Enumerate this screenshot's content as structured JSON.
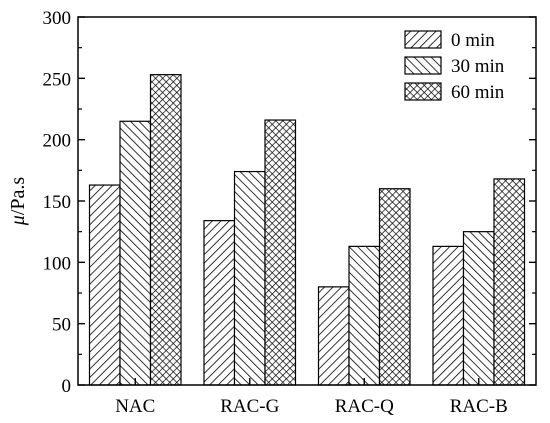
{
  "chart_data": {
    "type": "bar",
    "categories": [
      "NAC",
      "RAC-G",
      "RAC-Q",
      "RAC-B"
    ],
    "series": [
      {
        "name": "0 min",
        "values": [
          163,
          134,
          80,
          113
        ],
        "pattern": "forward-diagonal-hatch"
      },
      {
        "name": "30 min",
        "values": [
          215,
          174,
          113,
          125
        ],
        "pattern": "backward-diagonal-hatch"
      },
      {
        "name": "60 min",
        "values": [
          253,
          216,
          160,
          168
        ],
        "pattern": "cross-hatch"
      }
    ],
    "title": "",
    "xlabel": "",
    "ylabel_italic": "μ",
    "ylabel_rest": "/Pa.s",
    "ylim": [
      0,
      300
    ],
    "yticks": [
      0,
      50,
      100,
      150,
      200,
      250,
      300
    ],
    "legend_position": "top-right",
    "grid": false,
    "colors": {
      "ink": "#000000",
      "background": "#ffffff"
    }
  }
}
